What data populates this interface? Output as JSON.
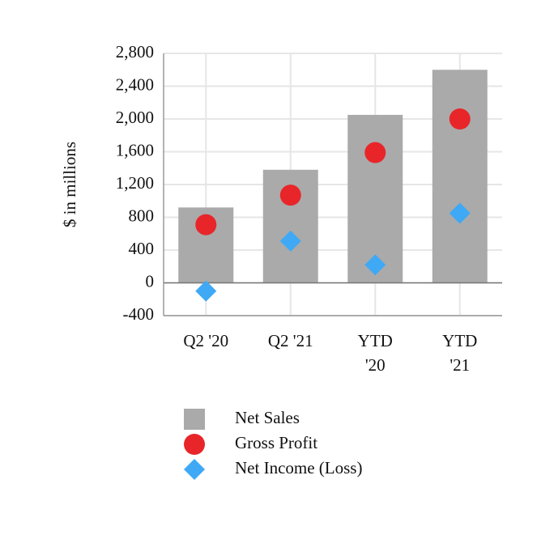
{
  "chart_data": {
    "type": "bar_scatter",
    "y_label": "$ in millions",
    "categories": [
      "Q2 '20",
      "Q2 '21",
      "YTD\n'20",
      "YTD\n'21"
    ],
    "series": [
      {
        "name": "Net Sales",
        "type": "bar",
        "color": "#aaaaaa",
        "values": [
          920,
          1380,
          2050,
          2600
        ]
      },
      {
        "name": "Gross Profit",
        "type": "circle",
        "color": "#e8262a",
        "values": [
          710,
          1070,
          1590,
          2000
        ]
      },
      {
        "name": "Net Income (Loss)",
        "type": "diamond",
        "color": "#3fa9f5",
        "values": [
          -100,
          510,
          220,
          850
        ]
      }
    ],
    "ylim": [
      -400,
      2800
    ],
    "yticks": [
      -400,
      0,
      400,
      800,
      {
        "value": 1200,
        "label": "1,200"
      },
      {
        "value": 1600,
        "label": "1,600"
      },
      {
        "value": 2000,
        "label": "2,000"
      },
      {
        "value": 2400,
        "label": "2,400"
      },
      {
        "value": 2800,
        "label": "2,800"
      }
    ],
    "grid": true
  }
}
